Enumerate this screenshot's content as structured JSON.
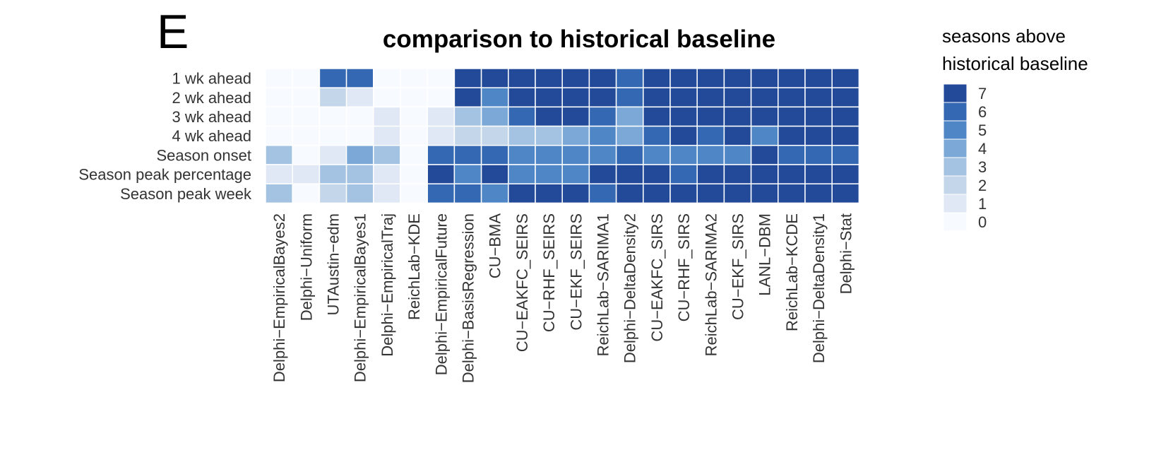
{
  "panel_label": "E",
  "colors": {
    "scale": [
      "#f7fbff",
      "#dfe8f4",
      "#c4d6ea",
      "#a4c2e2",
      "#7ba8d7",
      "#4f86c6",
      "#3468b2",
      "#224a98"
    ],
    "grid": "#ffffff"
  },
  "chart_data": {
    "type": "heatmap",
    "title": "comparison to historical baseline",
    "xlabel": "",
    "ylabel": "",
    "rows": [
      "1 wk ahead",
      "2 wk ahead",
      "3 wk ahead",
      "4 wk ahead",
      "Season onset",
      "Season peak percentage",
      "Season peak week"
    ],
    "columns": [
      "Delphi−EmpiricalBayes2",
      "Delphi−Uniform",
      "UTAustin−edm",
      "Delphi−EmpiricalBayes1",
      "Delphi−EmpiricalTraj",
      "ReichLab−KDE",
      "Delphi−EmpiricalFuture",
      "Delphi−BasisRegression",
      "CU−BMA",
      "CU−EAKFC_SEIRS",
      "CU−RHF_SEIRS",
      "CU−EKF_SEIRS",
      "ReichLab−SARIMA1",
      "Delphi−DeltaDensity2",
      "CU−EAKFC_SIRS",
      "CU−RHF_SIRS",
      "ReichLab−SARIMA2",
      "CU−EKF_SIRS",
      "LANL−DBM",
      "ReichLab−KCDE",
      "Delphi−DeltaDensity1",
      "Delphi−Stat"
    ],
    "values": [
      [
        0,
        0,
        6,
        6,
        0,
        0,
        0,
        7,
        7,
        7,
        7,
        7,
        7,
        6,
        7,
        7,
        7,
        7,
        7,
        7,
        7,
        7
      ],
      [
        0,
        0,
        2,
        1,
        0,
        0,
        0,
        7,
        5,
        7,
        7,
        7,
        7,
        6,
        7,
        7,
        7,
        7,
        7,
        7,
        7,
        7
      ],
      [
        0,
        0,
        0,
        0,
        1,
        0,
        1,
        3,
        4,
        6,
        7,
        7,
        6,
        4,
        7,
        7,
        7,
        7,
        7,
        7,
        7,
        7
      ],
      [
        0,
        0,
        0,
        0,
        1,
        0,
        1,
        2,
        2,
        3,
        3,
        4,
        5,
        4,
        6,
        7,
        6,
        7,
        5,
        7,
        7,
        7
      ],
      [
        3,
        0,
        1,
        4,
        3,
        0,
        6,
        6,
        6,
        5,
        5,
        5,
        5,
        6,
        5,
        5,
        5,
        5,
        7,
        6,
        6,
        6
      ],
      [
        1,
        1,
        3,
        3,
        1,
        0,
        7,
        5,
        7,
        5,
        5,
        5,
        7,
        7,
        7,
        6,
        7,
        7,
        7,
        7,
        7,
        7
      ],
      [
        3,
        0,
        2,
        3,
        1,
        0,
        6,
        6,
        5,
        7,
        7,
        7,
        6,
        7,
        7,
        7,
        7,
        7,
        7,
        7,
        7,
        7
      ]
    ],
    "value_range": [
      0,
      7
    ],
    "grid": false,
    "legend": {
      "title_lines": [
        "seasons above",
        "historical baseline"
      ],
      "ticks": [
        7,
        6,
        5,
        4,
        3,
        2,
        1,
        0
      ],
      "placement": "right"
    }
  }
}
